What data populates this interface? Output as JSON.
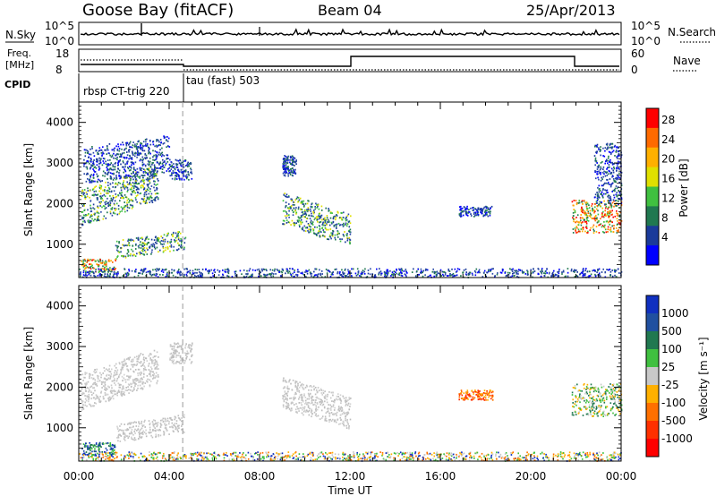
{
  "header": {
    "station": "Goose Bay (fitACF)",
    "beam": "Beam 04",
    "date": "25/Apr/2013"
  },
  "panels": {
    "nsky_label": "N.Sky",
    "nsearch_label": "N.Search",
    "nsky_ticks": [
      "10^5",
      "10^0"
    ],
    "nsearch_ticks": [
      "10^5",
      "10^0"
    ],
    "freq_label_top": "Freq.",
    "freq_label_unit": "[MHz]",
    "freq_ticks": [
      "18",
      "8"
    ],
    "nave_label": "Nave",
    "nave_ticks": [
      "60",
      "0"
    ],
    "cpid_label": "CPID",
    "cpid_entries": [
      {
        "text": "rbsp CT-trig 220"
      },
      {
        "text": "tau (fast) 503"
      }
    ]
  },
  "xaxis": {
    "label": "Time UT",
    "ticks": [
      "00:00",
      "04:00",
      "08:00",
      "12:00",
      "16:00",
      "20:00",
      "00:00"
    ]
  },
  "power_colorbar": {
    "label": "Power [dB]",
    "ticks": [
      "28",
      "24",
      "20",
      "16",
      "12",
      "8",
      "4"
    ],
    "colors": [
      "#ff0000",
      "#ff6a00",
      "#ffb000",
      "#e0e000",
      "#40c040",
      "#207850",
      "#1a3a9a",
      "#0000ff"
    ]
  },
  "velocity_colorbar": {
    "label": "Velocity [m s⁻¹]",
    "ticks": [
      "1000",
      "500",
      "100",
      "25",
      "-25",
      "-100",
      "-500",
      "-1000"
    ],
    "colors": [
      "#1030c0",
      "#2050a0",
      "#207850",
      "#40c040",
      "#c8c8c8",
      "#ffb000",
      "#ff7000",
      "#ff3000",
      "#ff0000"
    ]
  },
  "chart_data": [
    {
      "type": "heatmap",
      "name": "power",
      "ylabel": "Slant Range [km]",
      "yticks": [
        1000,
        2000,
        3000,
        4000
      ],
      "ylim": [
        180,
        4500
      ],
      "xlim": [
        0,
        24
      ],
      "blobs": [
        {
          "t0": 0.1,
          "t1": 3.5,
          "r0": 1450,
          "r1": 2350,
          "level": "mid",
          "slope": 650
        },
        {
          "t0": 0.2,
          "t1": 4.0,
          "r0": 2500,
          "r1": 3400,
          "level": "low",
          "slope": 300
        },
        {
          "t0": 1.6,
          "t1": 4.7,
          "r0": 650,
          "r1": 1100,
          "level": "mid",
          "slope": 250
        },
        {
          "t0": 0.1,
          "t1": 1.6,
          "r0": 330,
          "r1": 650,
          "level": "high",
          "slope": 0
        },
        {
          "t0": 9.0,
          "t1": 12.0,
          "r0": 1500,
          "r1": 2300,
          "level": "mid",
          "slope": -550
        },
        {
          "t0": 9.0,
          "t1": 9.6,
          "r0": 2700,
          "r1": 3200,
          "level": "low",
          "slope": 0
        },
        {
          "t0": 4.0,
          "t1": 5.0,
          "r0": 2600,
          "r1": 3100,
          "level": "low",
          "slope": 0
        },
        {
          "t0": 21.8,
          "t1": 24.0,
          "r0": 1300,
          "r1": 2100,
          "level": "high",
          "slope": 0
        },
        {
          "t0": 22.8,
          "t1": 24.0,
          "r0": 2000,
          "r1": 3500,
          "level": "low",
          "slope": 0
        },
        {
          "t0": 16.8,
          "t1": 18.3,
          "r0": 1700,
          "r1": 1950,
          "level": "low",
          "slope": 0
        },
        {
          "t0": 0.0,
          "t1": 24.0,
          "r0": 200,
          "r1": 420,
          "level": "low",
          "slope": 0
        }
      ]
    },
    {
      "type": "heatmap",
      "name": "velocity",
      "ylabel": "Slant Range [km]",
      "yticks": [
        1000,
        2000,
        3000,
        4000
      ],
      "ylim": [
        180,
        4500
      ],
      "xlim": [
        0,
        24
      ],
      "blobs": [
        {
          "t0": 0.1,
          "t1": 3.5,
          "r0": 1450,
          "r1": 2350,
          "level": "zero",
          "slope": 650
        },
        {
          "t0": 1.6,
          "t1": 4.7,
          "r0": 650,
          "r1": 1100,
          "level": "zero",
          "slope": 250
        },
        {
          "t0": 0.1,
          "t1": 1.6,
          "r0": 330,
          "r1": 650,
          "level": "pos",
          "slope": 0
        },
        {
          "t0": 9.0,
          "t1": 12.0,
          "r0": 1500,
          "r1": 2300,
          "level": "zero",
          "slope": -550
        },
        {
          "t0": 4.0,
          "t1": 5.0,
          "r0": 2600,
          "r1": 3100,
          "level": "zero",
          "slope": 0
        },
        {
          "t0": 21.8,
          "t1": 24.0,
          "r0": 1300,
          "r1": 2100,
          "level": "mixed",
          "slope": 0
        },
        {
          "t0": 16.8,
          "t1": 18.3,
          "r0": 1700,
          "r1": 1950,
          "level": "neg",
          "slope": 0
        },
        {
          "t0": 0.0,
          "t1": 24.0,
          "r0": 200,
          "r1": 420,
          "level": "noise",
          "slope": 0
        }
      ]
    }
  ]
}
